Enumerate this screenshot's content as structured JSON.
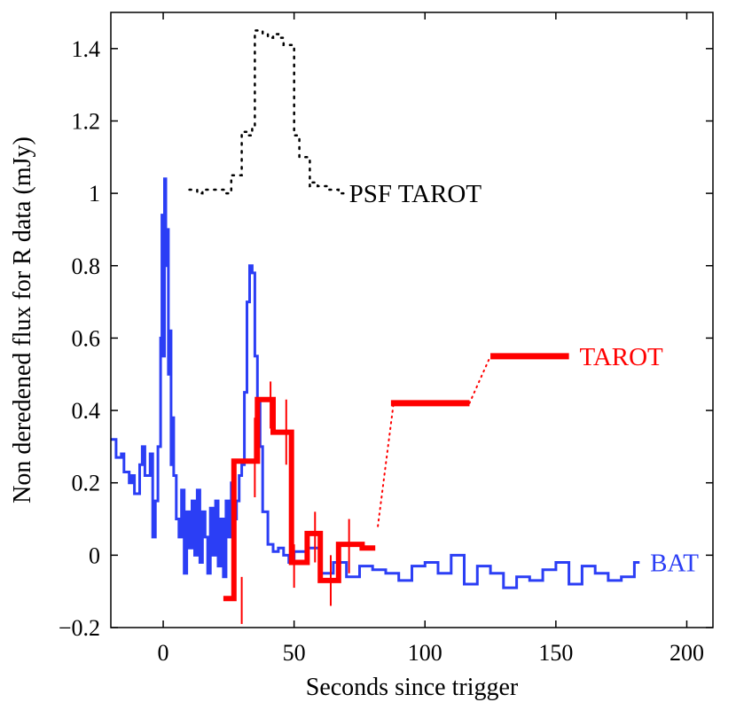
{
  "chart_data": {
    "type": "line",
    "title": "",
    "xlabel": "Seconds since trigger",
    "ylabel": "Non deredened flux for R data (mJy)",
    "xlim": [
      -20,
      210
    ],
    "ylim": [
      -0.2,
      1.5
    ],
    "xticks": [
      0,
      50,
      100,
      150,
      200
    ],
    "yticks": [
      -0.2,
      0,
      0.2,
      0.4,
      0.6,
      0.8,
      1,
      1.2,
      1.4
    ],
    "xtick_labels": [
      "0",
      "50",
      "100",
      "150",
      "200"
    ],
    "ytick_labels": [
      "−0.2",
      "0",
      "0.2",
      "0.4",
      "0.6",
      "0.8",
      "1",
      "1.2",
      "1.4"
    ],
    "series": [
      {
        "name": "BAT",
        "label": "BAT",
        "color": "#2b3ef5",
        "style": "step",
        "x": [
          -20,
          -18,
          -16,
          -15,
          -13,
          -12,
          -11,
          -9,
          -8,
          -7,
          -5,
          -4,
          -3,
          -2,
          -1,
          -0.5,
          0,
          0.5,
          1,
          1.5,
          2,
          2.5,
          3,
          3.5,
          4,
          5,
          6,
          7,
          8,
          9,
          10,
          11,
          12,
          13,
          14,
          15,
          16,
          17,
          18,
          19,
          20,
          21,
          22,
          23,
          24,
          25,
          26,
          27,
          28,
          29,
          30,
          31,
          32,
          33,
          34,
          35,
          36,
          37,
          38,
          40,
          42,
          44,
          46,
          48,
          50,
          55,
          60,
          65,
          70,
          75,
          80,
          85,
          90,
          95,
          100,
          105,
          110,
          115,
          120,
          125,
          130,
          135,
          140,
          145,
          150,
          155,
          160,
          165,
          170,
          175,
          180,
          182
        ],
        "y": [
          0.32,
          0.27,
          0.28,
          0.23,
          0.2,
          0.22,
          0.17,
          0.25,
          0.3,
          0.22,
          0.28,
          0.05,
          0.15,
          0.3,
          0.6,
          0.94,
          0.55,
          1.04,
          0.8,
          0.9,
          0.5,
          0.62,
          0.25,
          0.38,
          0.22,
          0.1,
          0.05,
          0.18,
          -0.05,
          0.12,
          0.02,
          0.15,
          0.0,
          0.18,
          -0.02,
          0.12,
          0.05,
          -0.05,
          0.13,
          0.0,
          0.15,
          -0.03,
          0.1,
          -0.06,
          0.15,
          0.05,
          0.2,
          0.1,
          0.15,
          0.22,
          0.25,
          0.45,
          0.7,
          0.8,
          0.78,
          0.55,
          0.42,
          0.3,
          0.12,
          0.03,
          0.01,
          0.02,
          0.0,
          -0.02,
          0.01,
          0.02,
          -0.05,
          -0.02,
          -0.06,
          -0.03,
          -0.04,
          -0.05,
          -0.07,
          -0.03,
          -0.02,
          -0.05,
          0.0,
          -0.08,
          -0.03,
          -0.05,
          -0.09,
          -0.06,
          -0.07,
          -0.04,
          -0.02,
          -0.08,
          -0.03,
          -0.05,
          -0.07,
          -0.06,
          -0.02,
          -0.02
        ]
      },
      {
        "name": "TAROT",
        "label": "TAROT",
        "color": "#ff0000",
        "style": "step",
        "x": [
          23,
          27,
          30,
          36,
          42,
          49,
          51,
          55,
          60,
          63,
          67,
          70,
          76,
          81
        ],
        "y": [
          -0.12,
          0.26,
          0.26,
          0.43,
          0.34,
          -0.02,
          -0.02,
          0.06,
          -0.07,
          -0.07,
          0.03,
          0.03,
          0.02,
          0.02
        ],
        "error_x": [
          30,
          35,
          41,
          47,
          50,
          58,
          64,
          71
        ],
        "error_low": [
          -0.19,
          0.16,
          0.35,
          0.25,
          -0.09,
          -0.02,
          -0.14,
          -0.05
        ],
        "error_high": [
          -0.06,
          0.38,
          0.48,
          0.43,
          0.03,
          0.12,
          0.0,
          0.1
        ],
        "late_segments": [
          {
            "x_start": 87,
            "x_end": 117,
            "y": 0.42
          },
          {
            "x_start": 125,
            "x_end": 155,
            "y": 0.55
          }
        ],
        "late_links": [
          {
            "x": [
              82,
              88
            ],
            "y": [
              0.08,
              0.42
            ]
          },
          {
            "x": [
              117,
              125
            ],
            "y": [
              0.42,
              0.55
            ]
          }
        ]
      },
      {
        "name": "PSF TAROT",
        "label": "PSF TAROT",
        "color": "#000000",
        "style": "dotted-step",
        "x": [
          10,
          13,
          15,
          17,
          20,
          22,
          24,
          26,
          28,
          30,
          32,
          34,
          35,
          36,
          38,
          40,
          42,
          44,
          46,
          48,
          50,
          52,
          54,
          56,
          57,
          59,
          61,
          63,
          65,
          67,
          69
        ],
        "y": [
          1.01,
          1.0,
          1.01,
          1.01,
          1.01,
          1.01,
          1.0,
          1.05,
          1.05,
          1.17,
          1.16,
          1.18,
          1.45,
          1.45,
          1.44,
          1.43,
          1.44,
          1.43,
          1.41,
          1.41,
          1.16,
          1.1,
          1.1,
          1.02,
          1.03,
          1.02,
          1.02,
          1.01,
          1.01,
          1.0,
          1.0
        ]
      }
    ]
  }
}
